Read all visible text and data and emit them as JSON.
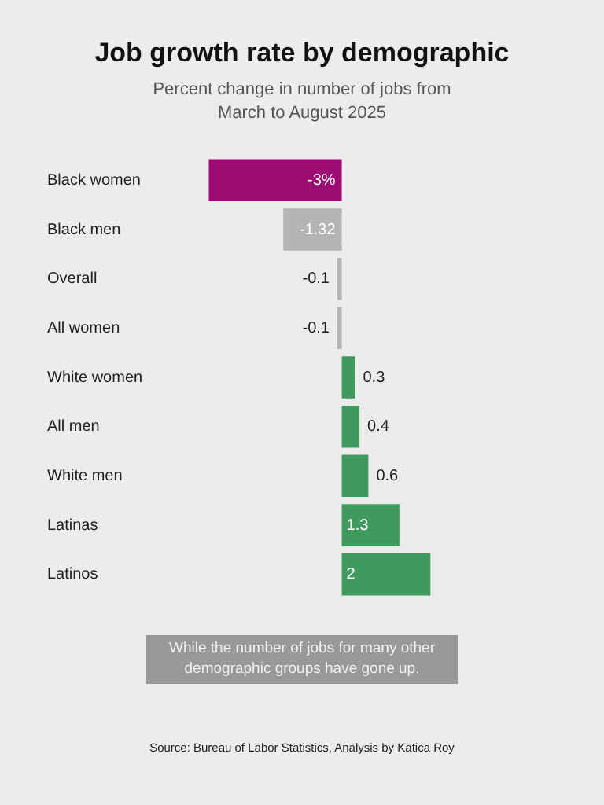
{
  "chart_data": {
    "type": "bar",
    "orientation": "horizontal",
    "title": "Job growth rate by demographic",
    "subtitle": "Percent change in number of jobs from March to August 2025",
    "categories": [
      "Black women",
      "Black men",
      "Overall",
      "All women",
      "White women",
      "All men",
      "White men",
      "Latinas",
      "Latinos"
    ],
    "values": [
      -3,
      -1.32,
      -0.1,
      -0.1,
      0.3,
      0.4,
      0.6,
      1.3,
      2
    ],
    "value_labels": [
      "-3%",
      "-1.32",
      "-0.1",
      "-0.1",
      "0.3",
      "0.4",
      "0.6",
      "1.3",
      "2"
    ],
    "colors": [
      "#9c0c72",
      "#b4b4b4",
      "#b4b4b4",
      "#b4b4b4",
      "#3f9a5e",
      "#3f9a5e",
      "#3f9a5e",
      "#3f9a5e",
      "#3f9a5e"
    ],
    "annotations": [
      "While the number of jobs for many other demographic groups have gone up.",
      "Source: Bureau of Labor Statistics, Analysis by Katica Roy"
    ]
  }
}
